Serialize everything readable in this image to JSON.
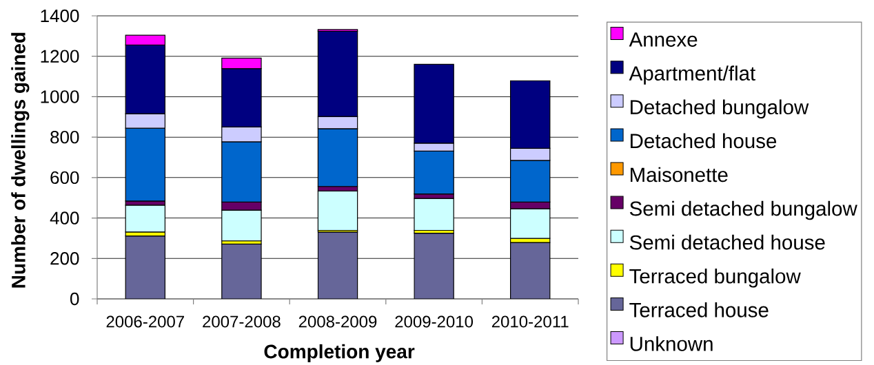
{
  "chart_data": {
    "type": "bar",
    "stacked": true,
    "xlabel": "Completion year",
    "ylabel": "Number of dwellings gained",
    "categories": [
      "2006-2007",
      "2007-2008",
      "2008-2009",
      "2009-2010",
      "2010-2011"
    ],
    "ylim": [
      0,
      1400
    ],
    "yticks": [
      0,
      200,
      400,
      600,
      800,
      1000,
      1200,
      1400
    ],
    "grid": "y",
    "legend": "right",
    "series": [
      {
        "name": "Unknown",
        "color": "#cc99ff",
        "values": [
          null,
          null,
          null,
          null,
          null
        ]
      },
      {
        "name": "Terraced house",
        "color": "#666699",
        "values": [
          311,
          271,
          331,
          325,
          279
        ]
      },
      {
        "name": "Terraced bungalow",
        "color": "#ffff00",
        "values": [
          20,
          16,
          8,
          14,
          20
        ]
      },
      {
        "name": "Semi detached house",
        "color": "#ccffff",
        "values": [
          133,
          152,
          195,
          158,
          147
        ]
      },
      {
        "name": "Semi detached bungalow",
        "color": "#660066",
        "values": [
          20,
          40,
          22,
          22,
          33
        ]
      },
      {
        "name": "Maisonette",
        "color": "#ff9900",
        "values": [
          null,
          null,
          null,
          null,
          null
        ]
      },
      {
        "name": "Detached house",
        "color": "#0066cc",
        "values": [
          360,
          298,
          286,
          212,
          206
        ]
      },
      {
        "name": "Detached bungalow",
        "color": "#ccccff",
        "values": [
          72,
          73,
          60,
          39,
          60
        ]
      },
      {
        "name": "Apartment/flat",
        "color": "#000080",
        "values": [
          340,
          289,
          422,
          390,
          334
        ]
      },
      {
        "name": "Annexe",
        "color": "#ff00ff",
        "values": [
          48,
          52,
          8,
          null,
          null
        ]
      }
    ]
  }
}
